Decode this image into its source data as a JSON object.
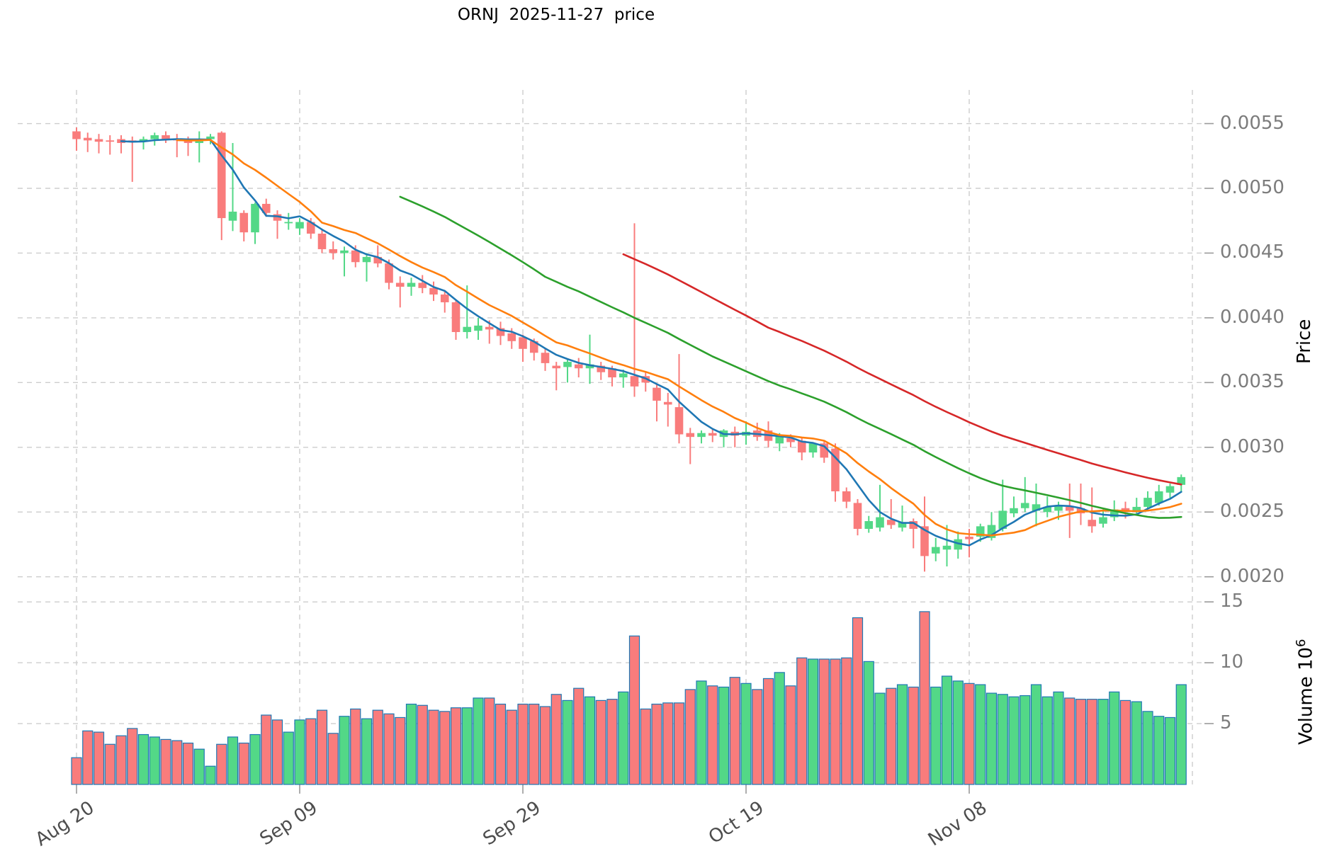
{
  "figure": {
    "title": "ORNJ  2025-11-27  price"
  },
  "chart_data": {
    "type": "candlestick",
    "title": "ORNJ  2025-11-27  price",
    "symbol": "ORNJ",
    "as_of_date": "2025-11-27",
    "n_candles": 100,
    "legend_position": "none",
    "grid": "dashed",
    "x_tick_labels": [
      {
        "index": 0,
        "label": "Aug 20"
      },
      {
        "index": 20,
        "label": "Sep 09"
      },
      {
        "index": 40,
        "label": "Sep 29"
      },
      {
        "index": 60,
        "label": "Oct 19"
      },
      {
        "index": 80,
        "label": "Nov 08"
      }
    ],
    "x_grid_indices": [
      0,
      20,
      40,
      60,
      80,
      100
    ],
    "price_axis": {
      "label": "Price",
      "tick_labels": [
        "0.0020",
        "0.0025",
        "0.0030",
        "0.0035",
        "0.0040",
        "0.0045",
        "0.0050",
        "0.0055"
      ],
      "range": [
        0.00196,
        0.00576
      ]
    },
    "volume_axis": {
      "label_text": "Volume 10",
      "label_sup": "6",
      "tick_labels": [
        "5",
        "10",
        "15"
      ],
      "range_millions": [
        0,
        15.3
      ]
    },
    "dates": [
      "Aug 20",
      "Aug 21",
      "Aug 22",
      "Aug 23",
      "Aug 24",
      "Aug 25",
      "Aug 26",
      "Aug 27",
      "Aug 28",
      "Aug 29",
      "Aug 30",
      "Aug 31",
      "Sep 01",
      "Sep 02",
      "Sep 03",
      "Sep 04",
      "Sep 05",
      "Sep 06",
      "Sep 07",
      "Sep 08",
      "Sep 09",
      "Sep 10",
      "Sep 11",
      "Sep 12",
      "Sep 13",
      "Sep 14",
      "Sep 15",
      "Sep 16",
      "Sep 17",
      "Sep 18",
      "Sep 19",
      "Sep 20",
      "Sep 21",
      "Sep 22",
      "Sep 23",
      "Sep 24",
      "Sep 25",
      "Sep 26",
      "Sep 27",
      "Sep 28",
      "Sep 29",
      "Sep 30",
      "Oct 01",
      "Oct 02",
      "Oct 03",
      "Oct 04",
      "Oct 05",
      "Oct 06",
      "Oct 07",
      "Oct 08",
      "Oct 09",
      "Oct 10",
      "Oct 11",
      "Oct 12",
      "Oct 13",
      "Oct 14",
      "Oct 15",
      "Oct 16",
      "Oct 17",
      "Oct 18",
      "Oct 19",
      "Oct 20",
      "Oct 21",
      "Oct 22",
      "Oct 23",
      "Oct 24",
      "Oct 25",
      "Oct 26",
      "Oct 27",
      "Oct 28",
      "Oct 29",
      "Oct 30",
      "Oct 31",
      "Nov 01",
      "Nov 02",
      "Nov 03",
      "Nov 04",
      "Nov 05",
      "Nov 06",
      "Nov 07",
      "Nov 08",
      "Nov 09",
      "Nov 10",
      "Nov 11",
      "Nov 12",
      "Nov 13",
      "Nov 14",
      "Nov 15",
      "Nov 16",
      "Nov 17",
      "Nov 18",
      "Nov 19",
      "Nov 20",
      "Nov 21",
      "Nov 22",
      "Nov 23",
      "Nov 24",
      "Nov 25",
      "Nov 26",
      "Nov 27"
    ],
    "ohlc": {
      "open": [
        0.00544,
        0.00539,
        0.00538,
        0.00537,
        0.00538,
        0.00537,
        0.00536,
        0.00538,
        0.00541,
        0.00538,
        0.00537,
        0.00535,
        0.00538,
        0.00543,
        0.00475,
        0.00481,
        0.00466,
        0.00488,
        0.0048,
        0.00474,
        0.00469,
        0.00474,
        0.00465,
        0.00453,
        0.0045,
        0.00452,
        0.00443,
        0.00447,
        0.00442,
        0.00427,
        0.00424,
        0.00427,
        0.00423,
        0.00418,
        0.00412,
        0.00389,
        0.0039,
        0.00393,
        0.00392,
        0.00388,
        0.00385,
        0.00382,
        0.00373,
        0.00363,
        0.00362,
        0.00364,
        0.00361,
        0.00363,
        0.00361,
        0.00354,
        0.00355,
        0.00355,
        0.00346,
        0.00335,
        0.00331,
        0.00311,
        0.00308,
        0.00311,
        0.00308,
        0.00312,
        0.00309,
        0.00313,
        0.00313,
        0.00303,
        0.00307,
        0.00305,
        0.00296,
        0.00303,
        0.00299,
        0.00266,
        0.00257,
        0.00237,
        0.00238,
        0.00244,
        0.00238,
        0.00243,
        0.00239,
        0.00218,
        0.00221,
        0.00221,
        0.00231,
        0.00231,
        0.0023,
        0.00237,
        0.00249,
        0.00253,
        0.00251,
        0.0025,
        0.00251,
        0.00254,
        0.00253,
        0.00244,
        0.00241,
        0.00246,
        0.00253,
        0.00251,
        0.00254,
        0.00257,
        0.00265,
        0.00271
      ],
      "high": [
        0.00547,
        0.00543,
        0.00542,
        0.00541,
        0.00541,
        0.0054,
        0.0054,
        0.00543,
        0.00544,
        0.00542,
        0.0054,
        0.00544,
        0.00542,
        0.00544,
        0.00535,
        0.00483,
        0.00489,
        0.00492,
        0.00483,
        0.00481,
        0.00477,
        0.00477,
        0.00468,
        0.00459,
        0.00455,
        0.00456,
        0.0045,
        0.00456,
        0.00445,
        0.00432,
        0.00431,
        0.00433,
        0.00428,
        0.00421,
        0.00414,
        0.00425,
        0.004,
        0.00398,
        0.00397,
        0.00392,
        0.00387,
        0.00384,
        0.00376,
        0.00366,
        0.00368,
        0.00369,
        0.00387,
        0.00366,
        0.00363,
        0.0036,
        0.00473,
        0.00358,
        0.00349,
        0.00342,
        0.00372,
        0.00315,
        0.00313,
        0.00314,
        0.00314,
        0.00316,
        0.0032,
        0.00319,
        0.0032,
        0.00311,
        0.0031,
        0.00307,
        0.00304,
        0.00305,
        0.00303,
        0.00269,
        0.0026,
        0.00247,
        0.00271,
        0.0026,
        0.00255,
        0.00245,
        0.00262,
        0.0023,
        0.0024,
        0.00235,
        0.00237,
        0.00241,
        0.0025,
        0.00275,
        0.00262,
        0.00277,
        0.00272,
        0.00262,
        0.00258,
        0.00272,
        0.00272,
        0.00269,
        0.00252,
        0.00259,
        0.00258,
        0.00261,
        0.00266,
        0.00271,
        0.00272,
        0.00279
      ],
      "low": [
        0.00529,
        0.00528,
        0.00527,
        0.00526,
        0.00527,
        0.00505,
        0.0053,
        0.00533,
        0.00535,
        0.00524,
        0.00525,
        0.0052,
        0.00534,
        0.0046,
        0.00467,
        0.00459,
        0.00457,
        0.00478,
        0.00461,
        0.00468,
        0.00464,
        0.00461,
        0.0045,
        0.00445,
        0.00432,
        0.00439,
        0.00428,
        0.00439,
        0.00422,
        0.00408,
        0.00417,
        0.00419,
        0.00413,
        0.00404,
        0.00383,
        0.00384,
        0.00383,
        0.0038,
        0.00379,
        0.00376,
        0.00366,
        0.00367,
        0.00359,
        0.00344,
        0.0035,
        0.00354,
        0.00349,
        0.00352,
        0.00347,
        0.00346,
        0.00339,
        0.00343,
        0.0032,
        0.00316,
        0.00303,
        0.00287,
        0.00303,
        0.00304,
        0.003,
        0.003,
        0.00302,
        0.00305,
        0.003,
        0.00297,
        0.003,
        0.0029,
        0.00292,
        0.00288,
        0.00258,
        0.00253,
        0.00232,
        0.00234,
        0.00235,
        0.00237,
        0.00235,
        0.00222,
        0.00204,
        0.00212,
        0.00208,
        0.00214,
        0.00215,
        0.00227,
        0.00228,
        0.00235,
        0.00246,
        0.0025,
        0.00239,
        0.00246,
        0.00244,
        0.0023,
        0.0024,
        0.00234,
        0.00238,
        0.00243,
        0.00245,
        0.00249,
        0.00252,
        0.00255,
        0.00261,
        0.00265
      ],
      "close": [
        0.00538,
        0.00537,
        0.00536,
        0.00536,
        0.00535,
        0.00536,
        0.00538,
        0.00541,
        0.00538,
        0.00537,
        0.00535,
        0.00538,
        0.0054,
        0.00477,
        0.00482,
        0.00466,
        0.00488,
        0.00481,
        0.00475,
        0.00474,
        0.00474,
        0.00465,
        0.00453,
        0.0045,
        0.00452,
        0.00443,
        0.00447,
        0.00442,
        0.00427,
        0.00424,
        0.00427,
        0.00423,
        0.00418,
        0.00412,
        0.00389,
        0.00393,
        0.00394,
        0.00391,
        0.00386,
        0.00382,
        0.00376,
        0.00373,
        0.00365,
        0.00361,
        0.00366,
        0.00361,
        0.00364,
        0.00358,
        0.00354,
        0.00357,
        0.00347,
        0.0035,
        0.00336,
        0.00333,
        0.0031,
        0.00308,
        0.00311,
        0.00309,
        0.00313,
        0.00309,
        0.00312,
        0.00308,
        0.00305,
        0.00309,
        0.00304,
        0.00296,
        0.00303,
        0.00292,
        0.00266,
        0.00258,
        0.00237,
        0.00243,
        0.00246,
        0.0024,
        0.00242,
        0.00237,
        0.00216,
        0.00223,
        0.00224,
        0.00229,
        0.00229,
        0.00239,
        0.0024,
        0.00251,
        0.00253,
        0.00257,
        0.00256,
        0.00254,
        0.00255,
        0.00251,
        0.00249,
        0.00239,
        0.00246,
        0.00252,
        0.0025,
        0.00254,
        0.00261,
        0.00266,
        0.0027,
        0.00277
      ]
    },
    "volume_millions": [
      2.2,
      4.4,
      4.3,
      3.3,
      4.0,
      4.6,
      4.1,
      3.9,
      3.7,
      3.6,
      3.4,
      2.9,
      1.5,
      3.3,
      3.9,
      3.4,
      4.1,
      5.7,
      5.3,
      4.3,
      5.3,
      5.4,
      6.1,
      4.2,
      5.6,
      6.2,
      5.4,
      6.1,
      5.8,
      5.5,
      6.6,
      6.5,
      6.1,
      6.0,
      6.3,
      6.3,
      7.1,
      7.1,
      6.6,
      6.1,
      6.6,
      6.6,
      6.4,
      7.4,
      6.9,
      7.9,
      7.2,
      6.9,
      7.0,
      7.6,
      12.2,
      6.2,
      6.6,
      6.7,
      6.7,
      7.8,
      8.5,
      8.1,
      8.0,
      8.8,
      8.3,
      7.8,
      8.7,
      9.2,
      8.1,
      10.4,
      10.3,
      10.3,
      10.3,
      10.4,
      13.7,
      10.1,
      7.5,
      7.9,
      8.2,
      8.0,
      14.2,
      8.0,
      8.9,
      8.5,
      8.3,
      8.2,
      7.5,
      7.4,
      7.2,
      7.3,
      8.2,
      7.2,
      7.6,
      7.1,
      7.0,
      7.0,
      7.0,
      7.6,
      6.9,
      6.8,
      6.0,
      5.6,
      5.5,
      8.2
    ],
    "moving_averages": [
      {
        "name": "SMA5",
        "period": 5,
        "color": "#1f77b4"
      },
      {
        "name": "SMA10",
        "period": 10,
        "color": "#ff7f0e"
      },
      {
        "name": "SMA30",
        "period": 30,
        "color": "#2ca02c"
      },
      {
        "name": "SMA50",
        "period": 50,
        "color": "#d62728"
      }
    ],
    "colors": {
      "up": "#53d887",
      "down": "#f97c7c",
      "volume_edge": "#1f77b4",
      "grid": "#cdcdcd",
      "tick_mark": "#9a9a9a",
      "y_tick_label": "#7c7c7c",
      "x_tick_label": "#4d4d4d",
      "title": "#000000",
      "background": "#ffffff"
    }
  }
}
